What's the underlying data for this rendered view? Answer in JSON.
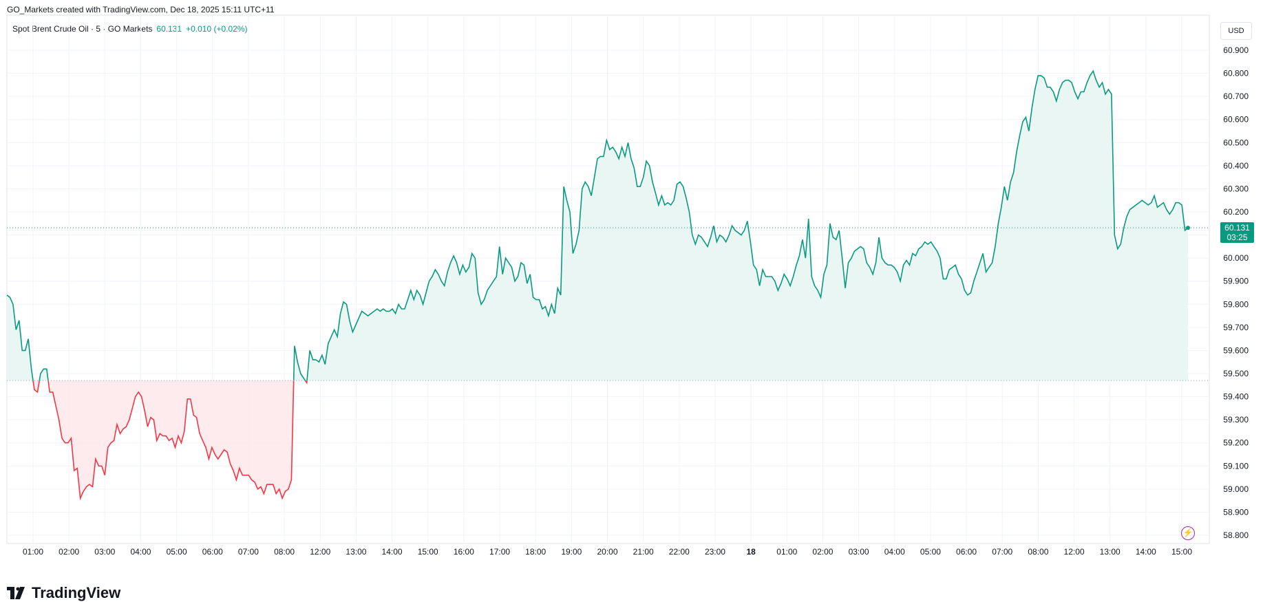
{
  "header": {
    "attribution": "GO_Markets created with TradingView.com, Dec 18, 2025 15:11 UTC+11"
  },
  "legend": {
    "symbol": "Spot Brent Crude Oil · 5 · GO Markets",
    "last": "60.131",
    "change": "+0.010 (+0.02%)"
  },
  "price_axis": {
    "currency": "USD",
    "badge_price": "60.131",
    "badge_time": "03:25"
  },
  "brand": {
    "name": "TradingView"
  },
  "colors": {
    "up": "#089981",
    "down": "#f23645",
    "up_fill": "#e6f4f1",
    "down_fill": "#fde8ea",
    "grid": "#f0f3fa"
  },
  "chart_data": {
    "type": "area",
    "baseline": 59.47,
    "ylim": [
      58.8,
      60.9
    ],
    "y_ticks": [
      "60.900",
      "60.800",
      "60.700",
      "60.600",
      "60.500",
      "60.400",
      "60.300",
      "60.200",
      "60.100",
      "60.000",
      "59.900",
      "59.800",
      "59.700",
      "59.600",
      "59.500",
      "59.400",
      "59.300",
      "59.200",
      "59.100",
      "59.000",
      "58.900",
      "58.800"
    ],
    "x_ticks": [
      "01:00",
      "02:00",
      "03:00",
      "04:00",
      "05:00",
      "06:00",
      "07:00",
      "08:00",
      "12:00",
      "13:00",
      "14:00",
      "15:00",
      "16:00",
      "17:00",
      "18:00",
      "19:00",
      "20:00",
      "21:00",
      "22:00",
      "23:00",
      "18",
      "01:00",
      "02:00",
      "03:00",
      "04:00",
      "05:00",
      "06:00",
      "07:00",
      "08:00",
      "12:00",
      "13:00",
      "14:00",
      "15:00"
    ],
    "series": [
      {
        "values": [
          59.84,
          59.83,
          59.8,
          59.69,
          59.73,
          59.6,
          59.6,
          59.65,
          59.52,
          59.43,
          59.42,
          59.5,
          59.52,
          59.52,
          59.42,
          59.42,
          59.36,
          59.3,
          59.22,
          59.2,
          59.2,
          59.22,
          59.08,
          59.09,
          58.96,
          58.99,
          59.01,
          59.02,
          59.01,
          59.13,
          59.1,
          59.1,
          59.06,
          59.18,
          59.2,
          59.21,
          59.28,
          59.24,
          59.26,
          59.27,
          59.3,
          59.35,
          59.4,
          59.42,
          59.4,
          59.34,
          59.27,
          59.31,
          59.3,
          59.21,
          59.24,
          59.23,
          59.23,
          59.21,
          59.22,
          59.18,
          59.23,
          59.2,
          59.25,
          59.39,
          59.39,
          59.32,
          59.31,
          59.24,
          59.21,
          59.18,
          59.13,
          59.18,
          59.15,
          59.13,
          59.15,
          59.17,
          59.16,
          59.11,
          59.08,
          59.04,
          59.09,
          59.06,
          59.06,
          59.06,
          59.04,
          59.03,
          59.0,
          59.01,
          58.98,
          59.02,
          59.02,
          59.02,
          58.98,
          59.0,
          58.96,
          58.99,
          59.0,
          59.04,
          59.62,
          59.55,
          59.5,
          59.48,
          59.46,
          59.6,
          59.56,
          59.56,
          59.55,
          59.58,
          59.54,
          59.63,
          59.66,
          59.69,
          59.66,
          59.76,
          59.81,
          59.8,
          59.73,
          59.68,
          59.71,
          59.74,
          59.77,
          59.76,
          59.75,
          59.76,
          59.77,
          59.78,
          59.77,
          59.78,
          59.77,
          59.77,
          59.78,
          59.76,
          59.8,
          59.78,
          59.78,
          59.82,
          59.86,
          59.82,
          59.86,
          59.84,
          59.8,
          59.85,
          59.9,
          59.92,
          59.95,
          59.93,
          59.9,
          59.88,
          59.94,
          59.98,
          60.01,
          59.98,
          59.93,
          59.97,
          59.94,
          59.96,
          60.02,
          60.0,
          59.85,
          59.8,
          59.82,
          59.86,
          59.88,
          59.9,
          59.92,
          60.05,
          59.93,
          60.0,
          59.98,
          59.96,
          59.9,
          59.92,
          59.98,
          59.97,
          59.89,
          59.93,
          59.83,
          59.82,
          59.82,
          59.78,
          59.79,
          59.75,
          59.8,
          59.76,
          59.87,
          59.84,
          60.31,
          60.25,
          60.2,
          60.02,
          60.06,
          60.12,
          60.3,
          60.33,
          60.31,
          60.27,
          60.35,
          60.43,
          60.44,
          60.44,
          60.51,
          60.47,
          60.48,
          60.46,
          60.43,
          60.48,
          60.44,
          60.5,
          60.43,
          60.39,
          60.31,
          60.31,
          60.35,
          60.42,
          60.4,
          60.33,
          60.28,
          60.23,
          60.27,
          60.23,
          60.24,
          60.23,
          60.25,
          60.32,
          60.33,
          60.31,
          60.26,
          60.2,
          60.1,
          60.06,
          60.1,
          60.09,
          60.07,
          60.05,
          60.09,
          60.14,
          60.07,
          60.1,
          60.09,
          60.07,
          60.1,
          60.14,
          60.12,
          60.11,
          60.1,
          60.12,
          60.16,
          60.07,
          59.97,
          59.95,
          59.88,
          59.95,
          59.92,
          59.92,
          59.92,
          59.9,
          59.86,
          59.89,
          59.93,
          59.91,
          59.88,
          59.92,
          59.97,
          60.01,
          60.08,
          60.0,
          60.17,
          59.92,
          59.88,
          59.86,
          59.83,
          59.93,
          59.97,
          60.15,
          60.09,
          60.08,
          60.12,
          60.0,
          59.87,
          59.98,
          60.0,
          60.03,
          60.04,
          60.05,
          60.04,
          59.98,
          59.96,
          59.93,
          59.98,
          60.09,
          60.0,
          59.98,
          59.97,
          59.97,
          59.96,
          59.94,
          59.9,
          59.97,
          59.99,
          59.97,
          60.02,
          60.01,
          60.04,
          60.05,
          60.07,
          60.06,
          60.07,
          60.05,
          60.03,
          60.0,
          59.91,
          59.91,
          59.95,
          59.96,
          59.97,
          59.93,
          59.91,
          59.86,
          59.84,
          59.85,
          59.9,
          59.94,
          59.98,
          60.02,
          59.94,
          59.96,
          59.98,
          60.05,
          60.15,
          60.22,
          60.31,
          60.25,
          60.33,
          60.37,
          60.46,
          60.53,
          60.59,
          60.61,
          60.55,
          60.65,
          60.73,
          60.79,
          60.79,
          60.78,
          60.74,
          60.74,
          60.72,
          60.68,
          60.73,
          60.76,
          60.77,
          60.77,
          60.76,
          60.72,
          60.69,
          60.72,
          60.72,
          60.76,
          60.79,
          60.81,
          60.77,
          60.74,
          60.76,
          60.71,
          60.73,
          60.71,
          60.1,
          60.04,
          60.06,
          60.13,
          60.18,
          60.21,
          60.22,
          60.23,
          60.24,
          60.25,
          60.24,
          60.23,
          60.24,
          60.27,
          60.22,
          60.23,
          60.24,
          60.21,
          60.19,
          60.21,
          60.24,
          60.24,
          60.23,
          60.12,
          60.131
        ]
      }
    ]
  }
}
